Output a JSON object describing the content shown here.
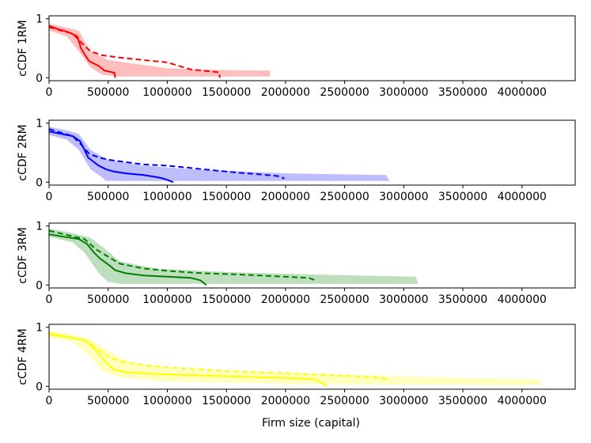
{
  "figure": {
    "xlabel": "Firm size (capital)"
  },
  "chart_data": [
    {
      "type": "line",
      "ylabel": "cCDF 1RM",
      "color": "#ff0000",
      "band_color": "#ffb3b3",
      "xlim": [
        0,
        4450000
      ],
      "ylim": [
        -0.05,
        1.05
      ],
      "xticks": [
        0,
        500000,
        1000000,
        1500000,
        2000000,
        2500000,
        3000000,
        3500000,
        4000000
      ],
      "xtick_labels": [
        "0",
        "500000",
        "1000000",
        "1500000",
        "2000000",
        "2500000",
        "3000000",
        "3500000",
        "4000000"
      ],
      "yticks": [
        0,
        1
      ],
      "ytick_labels": [
        "0",
        "1"
      ],
      "series": [
        {
          "style": "solid",
          "x": [
            0,
            80000,
            150000,
            200000,
            240000,
            270000,
            300000,
            340000,
            380000,
            420000,
            470000,
            520000,
            555000,
            560000
          ],
          "y": [
            0.88,
            0.82,
            0.78,
            0.74,
            0.7,
            0.5,
            0.4,
            0.28,
            0.24,
            0.2,
            0.12,
            0.1,
            0.08,
            0.0
          ]
        },
        {
          "style": "dashed",
          "x": [
            0,
            100000,
            200000,
            280000,
            350000,
            450000,
            600000,
            800000,
            1000000,
            1100000,
            1200000,
            1300000,
            1400000,
            1440000,
            1445000
          ],
          "y": [
            0.86,
            0.8,
            0.75,
            0.58,
            0.45,
            0.38,
            0.34,
            0.3,
            0.26,
            0.2,
            0.14,
            0.12,
            0.1,
            0.09,
            0.0
          ]
        }
      ],
      "band": {
        "upper": [
          [
            0,
            0.92
          ],
          [
            150000,
            0.85
          ],
          [
            250000,
            0.8
          ],
          [
            350000,
            0.45
          ],
          [
            500000,
            0.3
          ],
          [
            1000000,
            0.16
          ],
          [
            1500000,
            0.13
          ],
          [
            1870000,
            0.12
          ],
          [
            1870000,
            0.02
          ]
        ],
        "lower": [
          [
            0,
            0.8
          ],
          [
            150000,
            0.7
          ],
          [
            250000,
            0.45
          ],
          [
            350000,
            0.18
          ],
          [
            450000,
            0.05
          ],
          [
            600000,
            0.02
          ],
          [
            1870000,
            0.02
          ]
        ]
      }
    },
    {
      "type": "line",
      "ylabel": "cCDF 2RM",
      "color": "#0000ff",
      "band_color": "#b3b3ff",
      "xlim": [
        0,
        4450000
      ],
      "ylim": [
        -0.05,
        1.05
      ],
      "xticks": [
        0,
        500000,
        1000000,
        1500000,
        2000000,
        2500000,
        3000000,
        3500000,
        4000000
      ],
      "xtick_labels": [
        "0",
        "500000",
        "1000000",
        "1500000",
        "2000000",
        "2500000",
        "3000000",
        "3500000",
        "4000000"
      ],
      "yticks": [
        0,
        1
      ],
      "ytick_labels": [
        "0",
        "1"
      ],
      "series": [
        {
          "style": "solid",
          "x": [
            0,
            100000,
            200000,
            260000,
            300000,
            330000,
            380000,
            420000,
            480000,
            550000,
            650000,
            800000,
            900000,
            950000,
            1000000,
            1050000
          ],
          "y": [
            0.86,
            0.82,
            0.78,
            0.7,
            0.55,
            0.42,
            0.34,
            0.28,
            0.22,
            0.18,
            0.15,
            0.12,
            0.09,
            0.07,
            0.04,
            0.0
          ]
        },
        {
          "style": "dashed",
          "x": [
            0,
            100000,
            200000,
            280000,
            340000,
            420000,
            500000,
            650000,
            800000,
            1000000,
            1200000,
            1400000,
            1600000,
            1800000,
            1950000,
            1990000
          ],
          "y": [
            0.9,
            0.84,
            0.78,
            0.62,
            0.48,
            0.42,
            0.38,
            0.34,
            0.3,
            0.28,
            0.24,
            0.2,
            0.16,
            0.13,
            0.1,
            0.06
          ]
        }
      ],
      "band": {
        "upper": [
          [
            0,
            0.94
          ],
          [
            150000,
            0.88
          ],
          [
            250000,
            0.82
          ],
          [
            350000,
            0.55
          ],
          [
            500000,
            0.38
          ],
          [
            800000,
            0.28
          ],
          [
            1200000,
            0.22
          ],
          [
            2000000,
            0.15
          ],
          [
            2850000,
            0.12
          ],
          [
            2880000,
            0.02
          ]
        ],
        "lower": [
          [
            0,
            0.8
          ],
          [
            150000,
            0.72
          ],
          [
            250000,
            0.55
          ],
          [
            350000,
            0.22
          ],
          [
            450000,
            0.08
          ],
          [
            480000,
            0.02
          ],
          [
            2880000,
            0.02
          ]
        ]
      }
    },
    {
      "type": "line",
      "ylabel": "cCDF 3RM",
      "color": "#008000",
      "band_color": "#b3d9b3",
      "xlim": [
        0,
        4450000
      ],
      "ylim": [
        -0.05,
        1.05
      ],
      "xticks": [
        0,
        500000,
        1000000,
        1500000,
        2000000,
        2500000,
        3000000,
        3500000,
        4000000
      ],
      "xtick_labels": [
        "0",
        "500000",
        "1000000",
        "1500000",
        "2000000",
        "2500000",
        "3000000",
        "3500000",
        "4000000"
      ],
      "yticks": [
        0,
        1
      ],
      "ytick_labels": [
        "0",
        "1"
      ],
      "series": [
        {
          "style": "solid",
          "x": [
            0,
            120000,
            250000,
            320000,
            380000,
            430000,
            500000,
            560000,
            650000,
            800000,
            1000000,
            1200000,
            1280000,
            1330000
          ],
          "y": [
            0.86,
            0.82,
            0.78,
            0.7,
            0.55,
            0.45,
            0.35,
            0.25,
            0.2,
            0.16,
            0.14,
            0.12,
            0.08,
            0.0
          ]
        },
        {
          "style": "dashed",
          "x": [
            0,
            150000,
            300000,
            400000,
            500000,
            600000,
            800000,
            1000000,
            1300000,
            1600000,
            1900000,
            2200000,
            2250000
          ],
          "y": [
            0.92,
            0.85,
            0.78,
            0.6,
            0.48,
            0.36,
            0.28,
            0.24,
            0.2,
            0.18,
            0.15,
            0.12,
            0.08
          ]
        }
      ],
      "band": {
        "upper": [
          [
            0,
            0.96
          ],
          [
            200000,
            0.88
          ],
          [
            350000,
            0.8
          ],
          [
            450000,
            0.65
          ],
          [
            600000,
            0.4
          ],
          [
            900000,
            0.28
          ],
          [
            1500000,
            0.22
          ],
          [
            2200000,
            0.18
          ],
          [
            3100000,
            0.14
          ],
          [
            3120000,
            0.04
          ]
        ],
        "lower": [
          [
            0,
            0.82
          ],
          [
            200000,
            0.72
          ],
          [
            300000,
            0.55
          ],
          [
            420000,
            0.2
          ],
          [
            500000,
            0.05
          ],
          [
            600000,
            0.02
          ],
          [
            3120000,
            0.02
          ]
        ]
      }
    },
    {
      "type": "line",
      "ylabel": "cCDF 4RM",
      "color": "#ffff00",
      "band_color": "#ffffb3",
      "xlim": [
        0,
        4450000
      ],
      "ylim": [
        -0.05,
        1.05
      ],
      "xticks": [
        0,
        500000,
        1000000,
        1500000,
        2000000,
        2500000,
        3000000,
        3500000,
        4000000
      ],
      "xtick_labels": [
        "0",
        "500000",
        "1000000",
        "1500000",
        "2000000",
        "2500000",
        "3000000",
        "3500000",
        "4000000"
      ],
      "yticks": [
        0,
        1
      ],
      "ytick_labels": [
        "0",
        "1"
      ],
      "series": [
        {
          "style": "solid",
          "x": [
            0,
            150000,
            300000,
            380000,
            450000,
            500000,
            550000,
            650000,
            800000,
            1000000,
            1500000,
            2000000,
            2250000,
            2300000,
            2350000
          ],
          "y": [
            0.88,
            0.84,
            0.78,
            0.65,
            0.48,
            0.36,
            0.28,
            0.24,
            0.22,
            0.2,
            0.17,
            0.14,
            0.12,
            0.06,
            0.0
          ]
        },
        {
          "style": "dashed",
          "x": [
            0,
            150000,
            300000,
            400000,
            500000,
            600000,
            800000,
            1000000,
            1500000,
            2000000,
            2500000,
            2800000,
            2880000
          ],
          "y": [
            0.9,
            0.84,
            0.78,
            0.65,
            0.5,
            0.42,
            0.36,
            0.32,
            0.26,
            0.22,
            0.18,
            0.14,
            0.1
          ]
        }
      ],
      "band": {
        "upper": [
          [
            0,
            0.94
          ],
          [
            200000,
            0.88
          ],
          [
            350000,
            0.8
          ],
          [
            500000,
            0.6
          ],
          [
            700000,
            0.4
          ],
          [
            1000000,
            0.3
          ],
          [
            1500000,
            0.25
          ],
          [
            2500000,
            0.2
          ],
          [
            3500000,
            0.14
          ],
          [
            4150000,
            0.12
          ],
          [
            4160000,
            0.04
          ]
        ],
        "lower": [
          [
            0,
            0.82
          ],
          [
            200000,
            0.75
          ],
          [
            350000,
            0.5
          ],
          [
            450000,
            0.25
          ],
          [
            600000,
            0.15
          ],
          [
            1000000,
            0.08
          ],
          [
            2000000,
            0.04
          ],
          [
            4160000,
            0.02
          ]
        ]
      }
    }
  ]
}
